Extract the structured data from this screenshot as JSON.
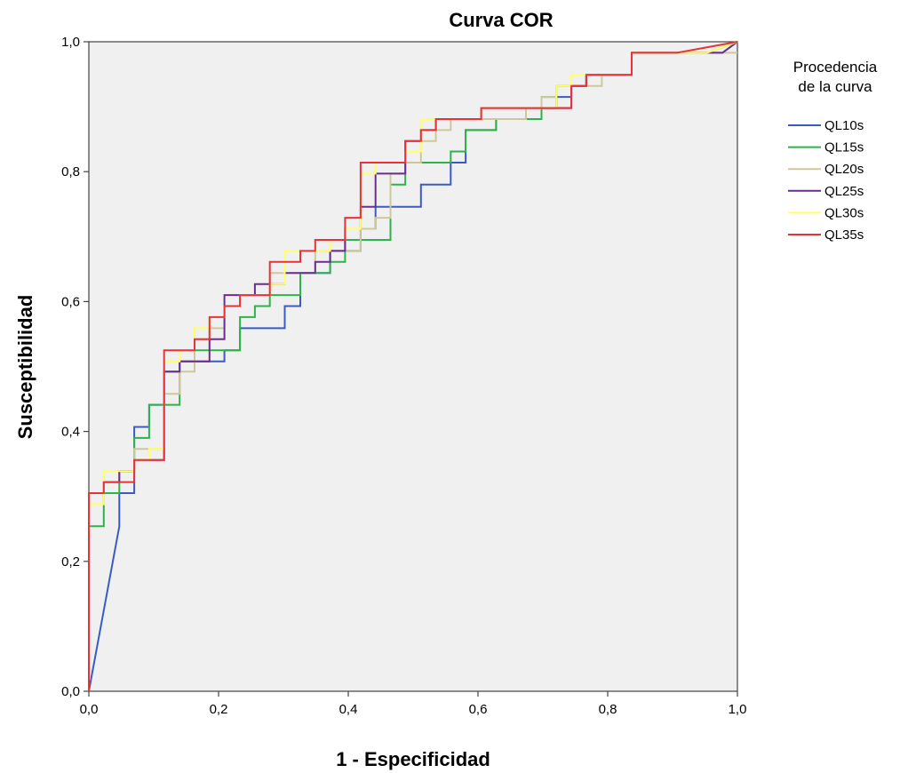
{
  "chart_data": {
    "type": "line",
    "title": "Curva COR",
    "xlabel": "1 - Especificidad",
    "ylabel": "Susceptibilidad",
    "xlim": [
      0,
      1
    ],
    "ylim": [
      0,
      1
    ],
    "x_ticks": [
      "0,0",
      "0,2",
      "0,4",
      "0,6",
      "0,8",
      "1,0"
    ],
    "y_ticks": [
      "0,0",
      "0,2",
      "0,4",
      "0,6",
      "0,8",
      "1,0"
    ],
    "grid": false,
    "plot_background": "#f0f0f0",
    "legend": {
      "title_line1": "Procedencia",
      "title_line2": "de la curva",
      "placement": "right"
    },
    "series": [
      {
        "name": "QL10s",
        "color": "#3b5bc4",
        "points": [
          [
            0,
            0
          ],
          [
            0.047,
            0.254
          ],
          [
            0.047,
            0.305
          ],
          [
            0.07,
            0.305
          ],
          [
            0.07,
            0.407
          ],
          [
            0.093,
            0.407
          ],
          [
            0.093,
            0.441
          ],
          [
            0.116,
            0.441
          ],
          [
            0.116,
            0.492
          ],
          [
            0.14,
            0.492
          ],
          [
            0.14,
            0.508
          ],
          [
            0.209,
            0.508
          ],
          [
            0.209,
            0.525
          ],
          [
            0.233,
            0.525
          ],
          [
            0.233,
            0.559
          ],
          [
            0.302,
            0.559
          ],
          [
            0.302,
            0.593
          ],
          [
            0.326,
            0.593
          ],
          [
            0.326,
            0.644
          ],
          [
            0.372,
            0.644
          ],
          [
            0.372,
            0.678
          ],
          [
            0.419,
            0.678
          ],
          [
            0.419,
            0.712
          ],
          [
            0.442,
            0.712
          ],
          [
            0.442,
            0.746
          ],
          [
            0.512,
            0.746
          ],
          [
            0.512,
            0.78
          ],
          [
            0.558,
            0.78
          ],
          [
            0.558,
            0.814
          ],
          [
            0.581,
            0.814
          ],
          [
            0.581,
            0.864
          ],
          [
            0.628,
            0.864
          ],
          [
            0.628,
            0.881
          ],
          [
            0.698,
            0.881
          ],
          [
            0.698,
            0.898
          ],
          [
            0.721,
            0.898
          ],
          [
            0.721,
            0.915
          ],
          [
            0.744,
            0.915
          ],
          [
            0.744,
            0.932
          ],
          [
            0.767,
            0.932
          ],
          [
            0.767,
            0.949
          ],
          [
            0.837,
            0.949
          ],
          [
            0.837,
            0.983
          ],
          [
            0.977,
            0.983
          ],
          [
            1,
            1
          ]
        ]
      },
      {
        "name": "QL15s",
        "color": "#2db34a",
        "points": [
          [
            0,
            0
          ],
          [
            0,
            0.254
          ],
          [
            0.023,
            0.254
          ],
          [
            0.023,
            0.305
          ],
          [
            0.047,
            0.305
          ],
          [
            0.047,
            0.339
          ],
          [
            0.07,
            0.339
          ],
          [
            0.07,
            0.39
          ],
          [
            0.093,
            0.39
          ],
          [
            0.093,
            0.441
          ],
          [
            0.116,
            0.441
          ],
          [
            0.116,
            0.441
          ],
          [
            0.14,
            0.441
          ],
          [
            0.14,
            0.508
          ],
          [
            0.163,
            0.508
          ],
          [
            0.163,
            0.525
          ],
          [
            0.233,
            0.525
          ],
          [
            0.233,
            0.576
          ],
          [
            0.256,
            0.576
          ],
          [
            0.256,
            0.593
          ],
          [
            0.279,
            0.593
          ],
          [
            0.279,
            0.61
          ],
          [
            0.326,
            0.61
          ],
          [
            0.326,
            0.644
          ],
          [
            0.372,
            0.644
          ],
          [
            0.372,
            0.661
          ],
          [
            0.395,
            0.661
          ],
          [
            0.395,
            0.695
          ],
          [
            0.465,
            0.695
          ],
          [
            0.465,
            0.78
          ],
          [
            0.488,
            0.78
          ],
          [
            0.488,
            0.814
          ],
          [
            0.558,
            0.814
          ],
          [
            0.558,
            0.831
          ],
          [
            0.581,
            0.831
          ],
          [
            0.581,
            0.864
          ],
          [
            0.628,
            0.864
          ],
          [
            0.628,
            0.881
          ],
          [
            0.698,
            0.881
          ],
          [
            0.698,
            0.915
          ],
          [
            0.721,
            0.915
          ],
          [
            0.721,
            0.932
          ],
          [
            0.767,
            0.932
          ],
          [
            0.767,
            0.949
          ],
          [
            0.837,
            0.949
          ],
          [
            0.837,
            0.983
          ],
          [
            0.953,
            0.983
          ],
          [
            0.953,
            0.983
          ],
          [
            1,
            1
          ]
        ]
      },
      {
        "name": "QL20s",
        "color": "#cfc79a",
        "points": [
          [
            0,
            0
          ],
          [
            0,
            0.288
          ],
          [
            0.023,
            0.288
          ],
          [
            0.023,
            0.322
          ],
          [
            0.047,
            0.322
          ],
          [
            0.047,
            0.339
          ],
          [
            0.07,
            0.339
          ],
          [
            0.07,
            0.373
          ],
          [
            0.093,
            0.373
          ],
          [
            0.093,
            0.373
          ],
          [
            0.116,
            0.373
          ],
          [
            0.116,
            0.458
          ],
          [
            0.14,
            0.458
          ],
          [
            0.14,
            0.492
          ],
          [
            0.163,
            0.492
          ],
          [
            0.163,
            0.542
          ],
          [
            0.186,
            0.542
          ],
          [
            0.186,
            0.559
          ],
          [
            0.209,
            0.559
          ],
          [
            0.209,
            0.593
          ],
          [
            0.233,
            0.593
          ],
          [
            0.233,
            0.61
          ],
          [
            0.279,
            0.61
          ],
          [
            0.279,
            0.644
          ],
          [
            0.349,
            0.644
          ],
          [
            0.349,
            0.678
          ],
          [
            0.395,
            0.678
          ],
          [
            0.395,
            0.678
          ],
          [
            0.419,
            0.678
          ],
          [
            0.419,
            0.712
          ],
          [
            0.442,
            0.712
          ],
          [
            0.442,
            0.729
          ],
          [
            0.465,
            0.729
          ],
          [
            0.465,
            0.797
          ],
          [
            0.488,
            0.797
          ],
          [
            0.488,
            0.814
          ],
          [
            0.512,
            0.814
          ],
          [
            0.512,
            0.847
          ],
          [
            0.535,
            0.847
          ],
          [
            0.535,
            0.864
          ],
          [
            0.558,
            0.864
          ],
          [
            0.558,
            0.881
          ],
          [
            0.674,
            0.881
          ],
          [
            0.674,
            0.898
          ],
          [
            0.698,
            0.898
          ],
          [
            0.698,
            0.915
          ],
          [
            0.721,
            0.915
          ],
          [
            0.721,
            0.932
          ],
          [
            0.791,
            0.932
          ],
          [
            0.791,
            0.949
          ],
          [
            0.837,
            0.949
          ],
          [
            0.837,
            0.983
          ],
          [
            1,
            0.983
          ]
        ]
      },
      {
        "name": "QL25s",
        "color": "#6b2d8e",
        "points": [
          [
            0,
            0
          ],
          [
            0,
            0.305
          ],
          [
            0.023,
            0.305
          ],
          [
            0.023,
            0.322
          ],
          [
            0.047,
            0.322
          ],
          [
            0.047,
            0.339
          ],
          [
            0.07,
            0.339
          ],
          [
            0.07,
            0.356
          ],
          [
            0.116,
            0.356
          ],
          [
            0.116,
            0.492
          ],
          [
            0.14,
            0.492
          ],
          [
            0.14,
            0.508
          ],
          [
            0.186,
            0.508
          ],
          [
            0.186,
            0.542
          ],
          [
            0.209,
            0.542
          ],
          [
            0.209,
            0.61
          ],
          [
            0.256,
            0.61
          ],
          [
            0.256,
            0.627
          ],
          [
            0.302,
            0.627
          ],
          [
            0.302,
            0.644
          ],
          [
            0.349,
            0.644
          ],
          [
            0.349,
            0.661
          ],
          [
            0.372,
            0.661
          ],
          [
            0.372,
            0.678
          ],
          [
            0.395,
            0.678
          ],
          [
            0.395,
            0.712
          ],
          [
            0.419,
            0.712
          ],
          [
            0.419,
            0.746
          ],
          [
            0.442,
            0.746
          ],
          [
            0.442,
            0.797
          ],
          [
            0.488,
            0.797
          ],
          [
            0.488,
            0.847
          ],
          [
            0.512,
            0.847
          ],
          [
            0.512,
            0.864
          ],
          [
            0.535,
            0.864
          ],
          [
            0.535,
            0.881
          ],
          [
            0.605,
            0.881
          ],
          [
            0.605,
            0.898
          ],
          [
            0.744,
            0.898
          ],
          [
            0.744,
            0.932
          ],
          [
            0.767,
            0.932
          ],
          [
            0.767,
            0.949
          ],
          [
            0.837,
            0.949
          ],
          [
            0.837,
            0.983
          ],
          [
            0.977,
            0.983
          ],
          [
            1,
            1
          ]
        ]
      },
      {
        "name": "QL30s",
        "color": "#ffff66",
        "points": [
          [
            0,
            0
          ],
          [
            0,
            0.288
          ],
          [
            0.023,
            0.288
          ],
          [
            0.023,
            0.339
          ],
          [
            0.07,
            0.339
          ],
          [
            0.07,
            0.356
          ],
          [
            0.093,
            0.356
          ],
          [
            0.093,
            0.373
          ],
          [
            0.116,
            0.373
          ],
          [
            0.116,
            0.508
          ],
          [
            0.14,
            0.508
          ],
          [
            0.14,
            0.525
          ],
          [
            0.163,
            0.525
          ],
          [
            0.163,
            0.559
          ],
          [
            0.186,
            0.559
          ],
          [
            0.186,
            0.576
          ],
          [
            0.209,
            0.576
          ],
          [
            0.209,
            0.593
          ],
          [
            0.233,
            0.593
          ],
          [
            0.233,
            0.61
          ],
          [
            0.279,
            0.61
          ],
          [
            0.279,
            0.627
          ],
          [
            0.302,
            0.627
          ],
          [
            0.302,
            0.678
          ],
          [
            0.372,
            0.678
          ],
          [
            0.372,
            0.695
          ],
          [
            0.395,
            0.695
          ],
          [
            0.395,
            0.712
          ],
          [
            0.419,
            0.712
          ],
          [
            0.419,
            0.797
          ],
          [
            0.442,
            0.797
          ],
          [
            0.442,
            0.814
          ],
          [
            0.488,
            0.814
          ],
          [
            0.488,
            0.831
          ],
          [
            0.512,
            0.831
          ],
          [
            0.512,
            0.881
          ],
          [
            0.605,
            0.881
          ],
          [
            0.605,
            0.898
          ],
          [
            0.721,
            0.898
          ],
          [
            0.721,
            0.932
          ],
          [
            0.744,
            0.932
          ],
          [
            0.744,
            0.949
          ],
          [
            0.837,
            0.949
          ],
          [
            0.837,
            0.983
          ],
          [
            0.953,
            0.983
          ],
          [
            1,
            1
          ]
        ]
      },
      {
        "name": "QL35s",
        "color": "#e8323a",
        "points": [
          [
            0,
            0
          ],
          [
            0,
            0.305
          ],
          [
            0.023,
            0.305
          ],
          [
            0.023,
            0.322
          ],
          [
            0.07,
            0.322
          ],
          [
            0.07,
            0.356
          ],
          [
            0.116,
            0.356
          ],
          [
            0.116,
            0.525
          ],
          [
            0.163,
            0.525
          ],
          [
            0.163,
            0.542
          ],
          [
            0.186,
            0.542
          ],
          [
            0.186,
            0.576
          ],
          [
            0.209,
            0.576
          ],
          [
            0.209,
            0.593
          ],
          [
            0.233,
            0.593
          ],
          [
            0.233,
            0.61
          ],
          [
            0.256,
            0.61
          ],
          [
            0.256,
            0.61
          ],
          [
            0.279,
            0.61
          ],
          [
            0.279,
            0.661
          ],
          [
            0.302,
            0.661
          ],
          [
            0.302,
            0.661
          ],
          [
            0.326,
            0.661
          ],
          [
            0.326,
            0.678
          ],
          [
            0.349,
            0.678
          ],
          [
            0.349,
            0.695
          ],
          [
            0.395,
            0.695
          ],
          [
            0.395,
            0.729
          ],
          [
            0.419,
            0.729
          ],
          [
            0.419,
            0.814
          ],
          [
            0.465,
            0.814
          ],
          [
            0.465,
            0.814
          ],
          [
            0.488,
            0.814
          ],
          [
            0.488,
            0.847
          ],
          [
            0.512,
            0.847
          ],
          [
            0.512,
            0.864
          ],
          [
            0.535,
            0.864
          ],
          [
            0.535,
            0.881
          ],
          [
            0.605,
            0.881
          ],
          [
            0.605,
            0.898
          ],
          [
            0.744,
            0.898
          ],
          [
            0.744,
            0.932
          ],
          [
            0.767,
            0.932
          ],
          [
            0.767,
            0.949
          ],
          [
            0.837,
            0.949
          ],
          [
            0.837,
            0.983
          ],
          [
            0.907,
            0.983
          ],
          [
            1,
            1
          ]
        ]
      }
    ]
  }
}
